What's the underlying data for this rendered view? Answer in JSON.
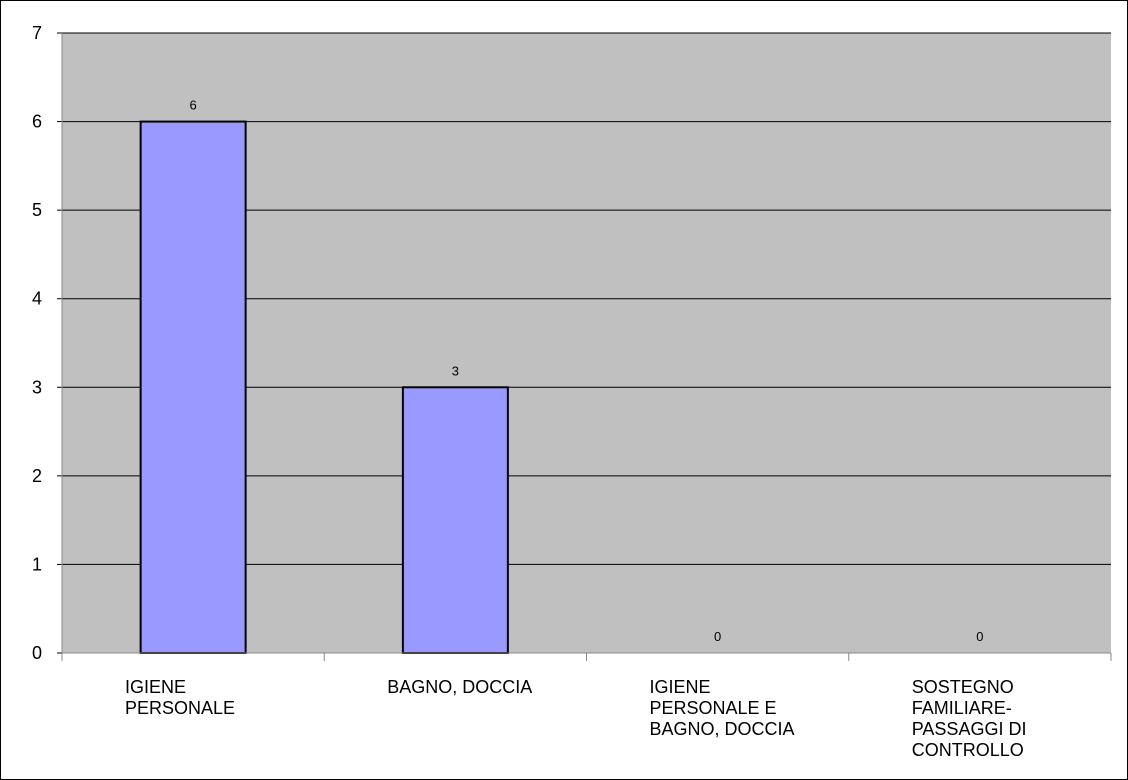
{
  "chart_data": {
    "type": "bar",
    "categories": [
      [
        "IGIENE",
        "PERSONALE"
      ],
      [
        "BAGNO, DOCCIA"
      ],
      [
        "IGIENE",
        "PERSONALE E",
        "BAGNO, DOCCIA"
      ],
      [
        "SOSTEGNO",
        "FAMILIARE-",
        "PASSAGGI DI",
        "CONTROLLO"
      ]
    ],
    "values": [
      6,
      3,
      0,
      0
    ],
    "data_labels": [
      "6",
      "3",
      "0",
      "0"
    ],
    "title": "",
    "xlabel": "",
    "ylabel": "",
    "ylim": [
      0,
      7
    ],
    "yticks": [
      0,
      1,
      2,
      3,
      4,
      5,
      6,
      7
    ],
    "grid": true,
    "legend": "none",
    "colors": {
      "plot_background": "#c0c0c0",
      "bar_fill": "#9999ff",
      "bar_stroke": "#000000",
      "gridline": "#000000"
    }
  }
}
